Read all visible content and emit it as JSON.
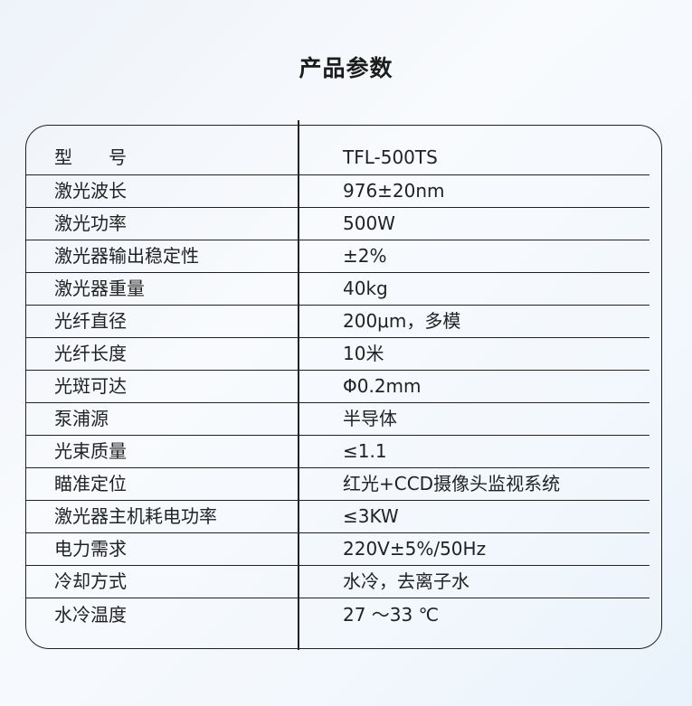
{
  "title": "产品参数",
  "rows": [
    {
      "label": "型　　号",
      "value": "TFL-500TS"
    },
    {
      "label": "激光波长",
      "value": "976±20nm"
    },
    {
      "label": "激光功率",
      "value": "500W"
    },
    {
      "label": "激光器输出稳定性",
      "value": "±2%"
    },
    {
      "label": "激光器重量",
      "value": "40kg"
    },
    {
      "label": "光纤直径",
      "value": "200μm，多模"
    },
    {
      "label": "光纤长度",
      "value": "10米"
    },
    {
      "label": "光斑可达",
      "value": "Φ0.2mm"
    },
    {
      "label": "泵浦源",
      "value": "半导体"
    },
    {
      "label": "光束质量",
      "value": "≤1.1"
    },
    {
      "label": "瞄准定位",
      "value": "红光+CCD摄像头监视系统"
    },
    {
      "label": "激光器主机耗电功率",
      "value": "≤3KW"
    },
    {
      "label": "电力需求",
      "value": "220V±5%/50Hz"
    },
    {
      "label": "冷却方式",
      "value": "水冷，去离子水"
    },
    {
      "label": "水冷温度",
      "value": "27 ～33 ℃"
    }
  ]
}
